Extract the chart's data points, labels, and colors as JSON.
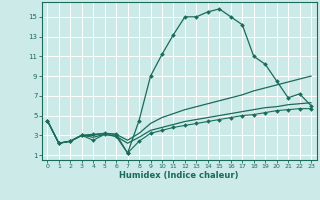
{
  "xlabel": "Humidex (Indice chaleur)",
  "xlim": [
    -0.5,
    23.5
  ],
  "ylim": [
    0.5,
    16.5
  ],
  "yticks": [
    1,
    3,
    5,
    7,
    9,
    11,
    13,
    15
  ],
  "xticks": [
    0,
    1,
    2,
    3,
    4,
    5,
    6,
    7,
    8,
    9,
    10,
    11,
    12,
    13,
    14,
    15,
    16,
    17,
    18,
    19,
    20,
    21,
    22,
    23
  ],
  "bg_color": "#cceae7",
  "grid_color": "#ffffff",
  "line_color": "#1a6b5a",
  "line1_x": [
    0,
    1,
    2,
    3,
    4,
    5,
    6,
    7,
    8,
    9,
    10,
    11,
    12,
    13,
    14,
    15,
    16,
    17,
    18,
    19,
    20,
    21,
    22,
    23
  ],
  "line1_y": [
    4.5,
    2.2,
    2.4,
    3.0,
    3.1,
    3.2,
    3.1,
    1.2,
    4.5,
    9.0,
    11.2,
    13.2,
    15.0,
    15.0,
    15.5,
    15.8,
    15.0,
    14.2,
    11.0,
    10.2,
    8.5,
    6.8,
    7.2,
    6.0
  ],
  "line2_x": [
    0,
    1,
    2,
    3,
    4,
    5,
    6,
    7,
    8,
    9,
    10,
    11,
    12,
    13,
    14,
    15,
    16,
    17,
    18,
    19,
    20,
    21,
    22,
    23
  ],
  "line2_y": [
    4.5,
    2.2,
    2.4,
    3.0,
    3.0,
    3.2,
    3.1,
    2.5,
    3.2,
    4.2,
    4.8,
    5.2,
    5.6,
    5.9,
    6.2,
    6.5,
    6.8,
    7.1,
    7.5,
    7.8,
    8.1,
    8.4,
    8.7,
    9.0
  ],
  "line3_x": [
    0,
    1,
    2,
    3,
    4,
    5,
    6,
    7,
    8,
    9,
    10,
    11,
    12,
    13,
    14,
    15,
    16,
    17,
    18,
    19,
    20,
    21,
    22,
    23
  ],
  "line3_y": [
    4.5,
    2.2,
    2.4,
    3.0,
    2.8,
    3.1,
    2.9,
    2.2,
    2.8,
    3.5,
    3.8,
    4.1,
    4.4,
    4.6,
    4.8,
    5.0,
    5.2,
    5.4,
    5.6,
    5.8,
    5.9,
    6.1,
    6.2,
    6.3
  ],
  "line4_x": [
    0,
    1,
    2,
    3,
    4,
    5,
    6,
    7,
    8,
    9,
    10,
    11,
    12,
    13,
    14,
    15,
    16,
    17,
    18,
    19,
    20,
    21,
    22,
    23
  ],
  "line4_y": [
    4.5,
    2.2,
    2.4,
    3.0,
    2.5,
    3.1,
    2.9,
    1.2,
    2.4,
    3.2,
    3.5,
    3.8,
    4.0,
    4.2,
    4.4,
    4.6,
    4.8,
    5.0,
    5.1,
    5.3,
    5.5,
    5.6,
    5.7,
    5.7
  ]
}
